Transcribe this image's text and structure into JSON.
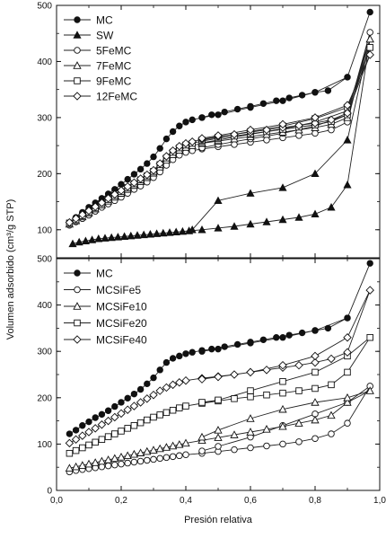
{
  "ylabel": "Volumen adsorbido (cm³/g STP)",
  "xlabel": "Presión relativa",
  "chart_data": [
    {
      "type": "line",
      "title": "",
      "xlabel": "Presión relativa",
      "ylabel": "Volumen adsorbido (cm³/g STP)",
      "xlim": [
        0.0,
        1.0
      ],
      "ylim": [
        50,
        500
      ],
      "x_ticks": [
        "0,0",
        "0,2",
        "0,4",
        "0,6",
        "0,8",
        "1,0"
      ],
      "y_ticks": [
        "100",
        "200",
        "300",
        "400",
        "500"
      ],
      "legend_position": "top-left",
      "series": [
        {
          "name": "MC",
          "marker": "filled-circle",
          "x": [
            0.04,
            0.06,
            0.08,
            0.1,
            0.12,
            0.14,
            0.16,
            0.18,
            0.2,
            0.22,
            0.24,
            0.26,
            0.28,
            0.3,
            0.32,
            0.34,
            0.36,
            0.38,
            0.4,
            0.42,
            0.45,
            0.48,
            0.52,
            0.56,
            0.6,
            0.64,
            0.68,
            0.72,
            0.76,
            0.8,
            0.84,
            0.9,
            0.97,
            0.9,
            0.8,
            0.7,
            0.6,
            0.5,
            0.45
          ],
          "y": [
            112,
            122,
            131,
            140,
            148,
            156,
            164,
            172,
            181,
            190,
            199,
            208,
            218,
            230,
            245,
            262,
            275,
            285,
            292,
            296,
            300,
            305,
            310,
            315,
            320,
            325,
            330,
            335,
            340,
            345,
            348,
            372,
            488,
            372,
            345,
            330,
            318,
            305,
            300
          ]
        },
        {
          "name": "SW",
          "marker": "filled-triangle",
          "x": [
            0.05,
            0.07,
            0.09,
            0.11,
            0.13,
            0.15,
            0.17,
            0.19,
            0.21,
            0.23,
            0.25,
            0.27,
            0.29,
            0.31,
            0.33,
            0.35,
            0.37,
            0.39,
            0.41,
            0.45,
            0.5,
            0.55,
            0.6,
            0.65,
            0.7,
            0.75,
            0.8,
            0.85,
            0.9,
            0.97,
            0.9,
            0.8,
            0.7,
            0.6,
            0.5,
            0.42
          ],
          "y": [
            75,
            78,
            80,
            82,
            84,
            85,
            86,
            87,
            88,
            89,
            90,
            91,
            92,
            93,
            94,
            95,
            96,
            97,
            98,
            100,
            103,
            106,
            110,
            114,
            118,
            122,
            128,
            140,
            180,
            440,
            260,
            200,
            175,
            165,
            152,
            100
          ]
        },
        {
          "name": "5FeMC",
          "marker": "open-circle",
          "x": [
            0.04,
            0.06,
            0.08,
            0.1,
            0.12,
            0.14,
            0.16,
            0.18,
            0.2,
            0.22,
            0.24,
            0.26,
            0.28,
            0.3,
            0.32,
            0.34,
            0.36,
            0.38,
            0.4,
            0.42,
            0.45,
            0.5,
            0.55,
            0.6,
            0.65,
            0.7,
            0.75,
            0.8,
            0.85,
            0.9,
            0.97,
            0.9,
            0.8,
            0.7,
            0.6,
            0.5,
            0.45
          ],
          "y": [
            108,
            114,
            120,
            126,
            133,
            140,
            146,
            152,
            158,
            165,
            172,
            178,
            185,
            193,
            203,
            215,
            225,
            233,
            238,
            241,
            244,
            248,
            252,
            256,
            260,
            264,
            268,
            272,
            278,
            292,
            452,
            305,
            285,
            272,
            262,
            252,
            246
          ]
        },
        {
          "name": "7FeMC",
          "marker": "open-triangle",
          "x": [
            0.04,
            0.06,
            0.08,
            0.1,
            0.12,
            0.14,
            0.16,
            0.18,
            0.2,
            0.22,
            0.24,
            0.26,
            0.28,
            0.3,
            0.32,
            0.34,
            0.36,
            0.38,
            0.4,
            0.42,
            0.45,
            0.5,
            0.55,
            0.6,
            0.65,
            0.7,
            0.75,
            0.8,
            0.85,
            0.9,
            0.97,
            0.9,
            0.8,
            0.7,
            0.6,
            0.5,
            0.45
          ],
          "y": [
            110,
            116,
            123,
            130,
            137,
            144,
            151,
            158,
            165,
            172,
            179,
            186,
            193,
            201,
            212,
            224,
            234,
            242,
            247,
            250,
            254,
            258,
            262,
            266,
            270,
            274,
            278,
            282,
            288,
            300,
            440,
            312,
            292,
            280,
            270,
            260,
            255
          ]
        },
        {
          "name": "9FeMC",
          "marker": "open-square",
          "x": [
            0.04,
            0.06,
            0.08,
            0.1,
            0.12,
            0.14,
            0.16,
            0.18,
            0.2,
            0.22,
            0.24,
            0.26,
            0.28,
            0.3,
            0.32,
            0.34,
            0.36,
            0.38,
            0.4,
            0.42,
            0.45,
            0.5,
            0.55,
            0.6,
            0.65,
            0.7,
            0.75,
            0.8,
            0.85,
            0.9,
            0.97,
            0.9,
            0.8,
            0.7,
            0.6,
            0.5,
            0.45
          ],
          "y": [
            112,
            118,
            125,
            132,
            139,
            147,
            154,
            161,
            168,
            175,
            182,
            189,
            196,
            204,
            216,
            228,
            238,
            246,
            251,
            254,
            258,
            263,
            267,
            271,
            275,
            279,
            283,
            287,
            293,
            305,
            425,
            318,
            298,
            285,
            275,
            265,
            260
          ]
        },
        {
          "name": "12FeMC",
          "marker": "open-diamond",
          "x": [
            0.04,
            0.06,
            0.08,
            0.1,
            0.12,
            0.14,
            0.16,
            0.18,
            0.2,
            0.22,
            0.24,
            0.26,
            0.28,
            0.3,
            0.32,
            0.34,
            0.36,
            0.38,
            0.4,
            0.42,
            0.45,
            0.5,
            0.55,
            0.6,
            0.65,
            0.7,
            0.75,
            0.8,
            0.85,
            0.9,
            0.97,
            0.9,
            0.8,
            0.7,
            0.6,
            0.5,
            0.45
          ],
          "y": [
            113,
            120,
            127,
            134,
            141,
            148,
            156,
            163,
            170,
            177,
            184,
            191,
            198,
            206,
            218,
            231,
            241,
            249,
            254,
            257,
            261,
            266,
            270,
            274,
            278,
            282,
            286,
            290,
            296,
            308,
            412,
            322,
            300,
            288,
            278,
            268,
            263
          ]
        }
      ]
    },
    {
      "type": "line",
      "title": "",
      "xlabel": "Presión relativa",
      "ylabel": "Volumen adsorbido (cm³/g STP)",
      "xlim": [
        0.0,
        1.0
      ],
      "ylim": [
        0,
        500
      ],
      "x_ticks": [
        "0,0",
        "0,2",
        "0,4",
        "0,6",
        "0,8",
        "1,0"
      ],
      "y_ticks": [
        "0",
        "100",
        "200",
        "300",
        "400",
        "500"
      ],
      "legend_position": "top-left",
      "series": [
        {
          "name": "MC",
          "marker": "filled-circle",
          "x": [
            0.04,
            0.06,
            0.08,
            0.1,
            0.12,
            0.14,
            0.16,
            0.18,
            0.2,
            0.22,
            0.24,
            0.26,
            0.28,
            0.3,
            0.32,
            0.34,
            0.36,
            0.38,
            0.4,
            0.42,
            0.45,
            0.48,
            0.52,
            0.56,
            0.6,
            0.64,
            0.68,
            0.72,
            0.76,
            0.8,
            0.84,
            0.9,
            0.97,
            0.9,
            0.8,
            0.7,
            0.6,
            0.5,
            0.45
          ],
          "y": [
            122,
            130,
            140,
            148,
            157,
            164,
            172,
            181,
            190,
            199,
            208,
            218,
            230,
            243,
            260,
            276,
            285,
            290,
            295,
            298,
            302,
            305,
            310,
            315,
            320,
            325,
            330,
            335,
            340,
            345,
            350,
            372,
            490,
            372,
            345,
            330,
            318,
            305,
            300
          ]
        },
        {
          "name": "MCSiFe5",
          "marker": "open-circle",
          "x": [
            0.04,
            0.06,
            0.08,
            0.1,
            0.12,
            0.14,
            0.16,
            0.18,
            0.2,
            0.22,
            0.24,
            0.26,
            0.28,
            0.3,
            0.32,
            0.34,
            0.36,
            0.38,
            0.4,
            0.45,
            0.5,
            0.55,
            0.6,
            0.65,
            0.7,
            0.75,
            0.8,
            0.85,
            0.9,
            0.97,
            0.9,
            0.8,
            0.7,
            0.6,
            0.5,
            0.45
          ],
          "y": [
            40,
            43,
            45,
            47,
            49,
            51,
            53,
            55,
            57,
            59,
            61,
            63,
            65,
            67,
            69,
            71,
            73,
            75,
            77,
            80,
            84,
            88,
            92,
            96,
            100,
            105,
            112,
            122,
            145,
            225,
            190,
            165,
            140,
            115,
            95,
            85
          ]
        },
        {
          "name": "MCSiFe10",
          "marker": "open-triangle",
          "x": [
            0.04,
            0.06,
            0.08,
            0.1,
            0.12,
            0.14,
            0.16,
            0.18,
            0.2,
            0.22,
            0.24,
            0.26,
            0.28,
            0.3,
            0.32,
            0.34,
            0.36,
            0.38,
            0.4,
            0.45,
            0.5,
            0.55,
            0.6,
            0.65,
            0.7,
            0.75,
            0.8,
            0.85,
            0.9,
            0.97,
            0.9,
            0.8,
            0.7,
            0.6,
            0.5,
            0.45
          ],
          "y": [
            48,
            51,
            54,
            57,
            60,
            63,
            66,
            69,
            72,
            75,
            78,
            81,
            84,
            87,
            90,
            93,
            96,
            99,
            102,
            108,
            114,
            120,
            126,
            132,
            138,
            145,
            152,
            162,
            190,
            215,
            200,
            190,
            175,
            155,
            130,
            115
          ]
        },
        {
          "name": "MCSiFe20",
          "marker": "open-square",
          "x": [
            0.04,
            0.06,
            0.08,
            0.1,
            0.12,
            0.14,
            0.16,
            0.18,
            0.2,
            0.22,
            0.24,
            0.26,
            0.28,
            0.3,
            0.32,
            0.34,
            0.36,
            0.38,
            0.4,
            0.45,
            0.5,
            0.55,
            0.6,
            0.65,
            0.7,
            0.75,
            0.8,
            0.85,
            0.9,
            0.97,
            0.9,
            0.8,
            0.7,
            0.6,
            0.5,
            0.45
          ],
          "y": [
            80,
            86,
            92,
            98,
            104,
            110,
            116,
            122,
            128,
            134,
            140,
            146,
            152,
            158,
            163,
            168,
            173,
            178,
            182,
            188,
            193,
            198,
            202,
            206,
            210,
            215,
            220,
            228,
            255,
            330,
            290,
            255,
            235,
            215,
            195,
            190
          ]
        },
        {
          "name": "MCSiFe40",
          "marker": "open-diamond",
          "x": [
            0.04,
            0.06,
            0.08,
            0.1,
            0.12,
            0.14,
            0.16,
            0.18,
            0.2,
            0.22,
            0.24,
            0.26,
            0.28,
            0.3,
            0.32,
            0.34,
            0.36,
            0.38,
            0.4,
            0.45,
            0.5,
            0.55,
            0.6,
            0.65,
            0.7,
            0.75,
            0.8,
            0.85,
            0.9,
            0.97,
            0.9,
            0.8,
            0.7,
            0.6,
            0.5,
            0.45
          ],
          "y": [
            102,
            110,
            118,
            126,
            134,
            142,
            150,
            158,
            166,
            174,
            182,
            190,
            198,
            206,
            215,
            222,
            228,
            233,
            237,
            242,
            246,
            250,
            255,
            260,
            265,
            270,
            276,
            284,
            298,
            432,
            330,
            290,
            270,
            255,
            245,
            240
          ]
        }
      ]
    }
  ]
}
